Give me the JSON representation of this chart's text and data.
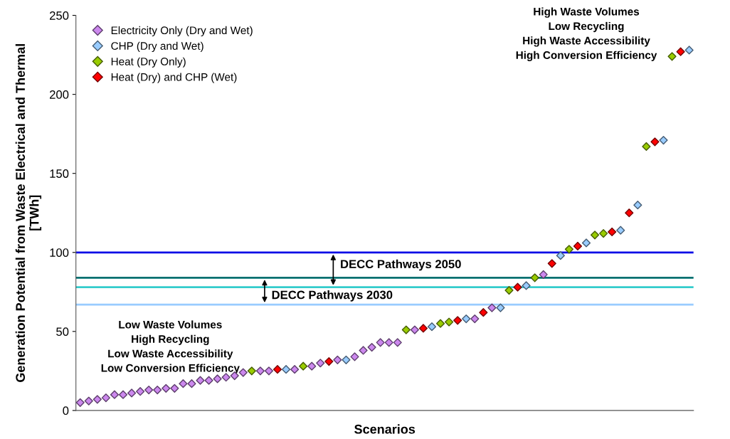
{
  "chart_data": {
    "type": "scatter",
    "xlabel": "Scenarios",
    "ylabel": "Generation Potential from Waste Electrical and Thermal\n[TWh]",
    "categories": [
      null,
      null,
      null,
      null,
      null,
      null,
      null,
      null,
      null,
      null,
      null,
      null,
      null,
      null,
      null,
      null,
      null,
      null,
      null,
      null,
      null,
      null,
      null,
      null,
      null,
      null,
      null,
      null,
      null,
      null,
      null,
      null,
      null,
      null,
      null,
      null,
      null,
      null,
      null,
      null,
      null,
      null,
      null,
      null,
      null,
      null,
      null,
      null,
      null,
      null,
      null,
      null,
      null,
      null,
      null,
      null,
      null,
      null,
      null,
      null,
      null,
      null,
      null,
      null,
      null,
      null,
      null,
      null,
      null,
      null,
      null,
      null
    ],
    "series": [
      {
        "name": "Electricity Only (Dry and Wet)",
        "color": "#cc88ee",
        "values": [
          5,
          6,
          7,
          8,
          10,
          10,
          11,
          12,
          13,
          13,
          14,
          14,
          17,
          17,
          19,
          19,
          20,
          21,
          22,
          24,
          null,
          25,
          25,
          null,
          null,
          26,
          null,
          28,
          30,
          null,
          32,
          null,
          34,
          38,
          40,
          43,
          43,
          43,
          null,
          51,
          null,
          null,
          null,
          null,
          null,
          null,
          58,
          null,
          65,
          null,
          null,
          null,
          null,
          null,
          86,
          null,
          null,
          null,
          null,
          null,
          null,
          null,
          null,
          null,
          null,
          null,
          null,
          null,
          null,
          null,
          null,
          null
        ]
      },
      {
        "name": "CHP (Dry and Wet)",
        "color": "#99ccff",
        "values": [
          null,
          null,
          null,
          null,
          null,
          null,
          null,
          null,
          null,
          null,
          null,
          null,
          null,
          null,
          null,
          null,
          null,
          null,
          null,
          null,
          null,
          null,
          null,
          null,
          26,
          null,
          null,
          null,
          null,
          null,
          null,
          32,
          null,
          null,
          null,
          null,
          null,
          null,
          null,
          null,
          null,
          53,
          null,
          null,
          null,
          58,
          null,
          null,
          null,
          65,
          null,
          null,
          79,
          null,
          null,
          null,
          98,
          null,
          null,
          106,
          null,
          null,
          null,
          114,
          null,
          130,
          null,
          null,
          171,
          null,
          null,
          228
        ]
      },
      {
        "name": "Heat (Dry Only)",
        "color": "#99cc00",
        "values": [
          null,
          null,
          null,
          null,
          null,
          null,
          null,
          null,
          null,
          null,
          null,
          null,
          null,
          null,
          null,
          null,
          null,
          null,
          null,
          null,
          25,
          null,
          null,
          null,
          null,
          null,
          28,
          null,
          null,
          null,
          null,
          null,
          null,
          null,
          null,
          null,
          null,
          null,
          51,
          null,
          null,
          null,
          55,
          56,
          null,
          null,
          null,
          null,
          null,
          null,
          76,
          null,
          null,
          84,
          null,
          null,
          null,
          102,
          null,
          null,
          111,
          112,
          null,
          null,
          null,
          null,
          167,
          null,
          null,
          224,
          null,
          null
        ]
      },
      {
        "name": "Heat (Dry) and CHP (Wet)",
        "color": "#ff0000",
        "values": [
          null,
          null,
          null,
          null,
          null,
          null,
          null,
          null,
          null,
          null,
          null,
          null,
          null,
          null,
          null,
          null,
          null,
          null,
          null,
          null,
          null,
          null,
          null,
          26,
          null,
          null,
          null,
          null,
          null,
          31,
          null,
          null,
          null,
          null,
          null,
          null,
          null,
          null,
          null,
          null,
          52,
          null,
          null,
          null,
          57,
          null,
          null,
          62,
          null,
          null,
          null,
          78,
          null,
          null,
          null,
          93,
          null,
          null,
          104,
          null,
          null,
          null,
          113,
          null,
          125,
          null,
          null,
          170,
          null,
          null,
          227,
          null
        ]
      }
    ],
    "marker": "diamond",
    "ylim": [
      0,
      250
    ],
    "yticks": [
      0,
      50,
      100,
      150,
      200,
      250
    ],
    "tick_labels": "y",
    "grid": false,
    "legend": "top left",
    "ref_lines": [
      {
        "axis": "y",
        "value": 100,
        "label": "DECC Pathways 2050",
        "color": "#0a0ae6"
      },
      {
        "axis": "y",
        "value": 84,
        "color": "#007070"
      },
      {
        "axis": "y",
        "value": 78,
        "label": "DECC Pathways 2030",
        "color": "#33cccc"
      },
      {
        "axis": "y",
        "value": 67,
        "color": "#99ccff"
      }
    ],
    "annotations": [
      "Low Waste Volumes\nHigh Recycling\nLow Waste Accessibility\nLow Conversion Efficiency",
      "High Waste Volumes\nLow Recycling\nHigh Waste Accessibility\nHigh Conversion Efficiency"
    ]
  }
}
